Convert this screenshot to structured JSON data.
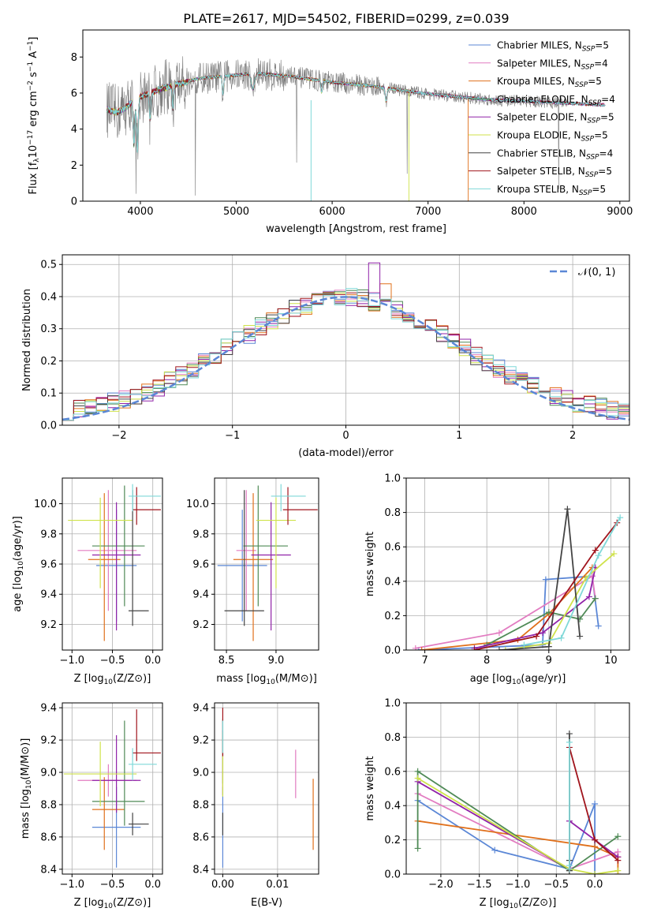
{
  "figure_title": "PLATE=2617, MJD=54502, FIBERID=0299, z=0.039",
  "colors": {
    "Chabrier MILES": "#5b87d6",
    "Salpeter MILES": "#e27cc1",
    "Kroupa MILES": "#e0701b",
    "Chabrier ELODIE": "#4f8a56",
    "Salpeter ELODIE": "#9022a8",
    "Kroupa ELODIE": "#cfe24a",
    "Chabrier STELIB": "#444444",
    "Salpeter STELIB": "#a0141c",
    "Kroupa STELIB": "#7fd8d8",
    "data_gray": "#7a7a7a",
    "normal_curve": "#5b87d6",
    "grid": "#b0b0b0"
  },
  "chart_data": [
    {
      "id": "spectrum",
      "type": "line",
      "xlabel": "wavelength [Angstrom, rest frame]",
      "ylabel": "Flux [f$_\\lambda$10$^{-17}$ erg cm$^{-2}$ s$^{-1}$ A$^{-1}$]",
      "ylabel_parts": [
        "Flux [f",
        "λ",
        "10",
        "−17",
        " erg cm",
        "−2",
        " s",
        "−1",
        " A",
        "−1",
        "]"
      ],
      "xlim": [
        3400,
        9100
      ],
      "ylim": [
        0,
        9.5
      ],
      "xticks": [
        4000,
        5000,
        6000,
        7000,
        8000,
        9000
      ],
      "yticks": [
        0,
        2,
        4,
        6,
        8
      ],
      "grid": false,
      "legend_position": "top-right",
      "legend": [
        {
          "model": "Chabrier MILES",
          "nssp": "5"
        },
        {
          "model": "Salpeter MILES",
          "nssp": "4"
        },
        {
          "model": "Kroupa MILES",
          "nssp": "5"
        },
        {
          "model": "Chabrier ELODIE",
          "nssp": "4"
        },
        {
          "model": "Salpeter ELODIE",
          "nssp": "5"
        },
        {
          "model": "Kroupa ELODIE",
          "nssp": "5"
        },
        {
          "model": "Chabrier STELIB",
          "nssp": "4"
        },
        {
          "model": "Salpeter STELIB",
          "nssp": "5"
        },
        {
          "model": "Kroupa STELIB",
          "nssp": "5"
        }
      ],
      "legend_prefix": "N",
      "legend_sub": "SSP",
      "continuum": [
        [
          3650,
          5.1
        ],
        [
          3750,
          4.9
        ],
        [
          3850,
          5.2
        ],
        [
          3950,
          5.7
        ],
        [
          4050,
          5.9
        ],
        [
          4200,
          6.2
        ],
        [
          4400,
          6.5
        ],
        [
          4600,
          6.8
        ],
        [
          4800,
          6.9
        ],
        [
          5000,
          7.0
        ],
        [
          5200,
          7.1
        ],
        [
          5400,
          7.0
        ],
        [
          5600,
          6.9
        ],
        [
          5800,
          6.75
        ],
        [
          6000,
          6.6
        ],
        [
          6200,
          6.5
        ],
        [
          6400,
          6.4
        ],
        [
          6600,
          6.25
        ],
        [
          6800,
          6.1
        ],
        [
          7000,
          5.95
        ],
        [
          7200,
          5.85
        ],
        [
          7400,
          5.75
        ],
        [
          7600,
          5.65
        ],
        [
          7800,
          5.6
        ],
        [
          8000,
          5.55
        ],
        [
          8200,
          5.5
        ],
        [
          8400,
          5.45
        ],
        [
          8600,
          5.4
        ],
        [
          8800,
          5.35
        ]
      ],
      "model_cutoffs": {
        "Kroupa ELODIE": 6800,
        "Kroupa MILES": 7420
      },
      "data_range": [
        3650,
        8450
      ],
      "model_range": [
        3650,
        8850
      ]
    },
    {
      "id": "residual-histogram",
      "type": "bar",
      "xlabel": "(data-model)/error",
      "ylabel": "Normed distribution",
      "xlim": [
        -2.5,
        2.5
      ],
      "ylim": [
        0,
        0.53
      ],
      "xticks": [
        -2,
        -1,
        0,
        1,
        2
      ],
      "yticks": [
        0.0,
        0.1,
        0.2,
        0.3,
        0.4,
        0.5
      ],
      "grid": true,
      "bin_width": 0.1,
      "bin_range": [
        -2.5,
        2.5
      ],
      "legend_position": "top-right",
      "normal_legend": "𝒩(0, 1)",
      "normal": {
        "mean": 0,
        "sigma": 1
      }
    },
    {
      "id": "age-vs-z",
      "type": "scatter",
      "xlabel": "Z [log10(Z/Z⊙)]",
      "ylabel": "age  [log10(age/yr)]",
      "xlim": [
        -1.12,
        0.12
      ],
      "ylim": [
        9.03,
        10.17
      ],
      "xticks": [
        -1.0,
        -0.5,
        0.0
      ],
      "yticks": [
        9.2,
        9.4,
        9.6,
        9.8,
        10.0
      ],
      "grid": true,
      "points": [
        {
          "model": "Chabrier MILES",
          "x": -0.45,
          "xerr": [
            0.25,
            0.25
          ],
          "y": 9.59,
          "yerr": [
            0.37,
            0.37
          ]
        },
        {
          "model": "Salpeter MILES",
          "x": -0.55,
          "xerr": [
            0.38,
            0.35
          ],
          "y": 9.69,
          "yerr": [
            0.4,
            0.4
          ]
        },
        {
          "model": "Kroupa MILES",
          "x": -0.6,
          "xerr": [
            0.2,
            0.2
          ],
          "y": 9.63,
          "yerr": [
            0.54,
            0.44
          ]
        },
        {
          "model": "Chabrier ELODIE",
          "x": -0.35,
          "xerr": [
            0.4,
            0.25
          ],
          "y": 9.72,
          "yerr": [
            0.4,
            0.4
          ]
        },
        {
          "model": "Salpeter ELODIE",
          "x": -0.45,
          "xerr": [
            0.3,
            0.3
          ],
          "y": 9.66,
          "yerr": [
            0.5,
            0.35
          ]
        },
        {
          "model": "Kroupa ELODIE",
          "x": -0.65,
          "xerr": [
            0.4,
            0.4
          ],
          "y": 9.89,
          "yerr": [
            0.45,
            0.15
          ]
        },
        {
          "model": "Chabrier STELIB",
          "x": -0.25,
          "xerr": [
            0.05,
            0.2
          ],
          "y": 9.29,
          "yerr": [
            0.1,
            0.8
          ]
        },
        {
          "model": "Salpeter STELIB",
          "x": -0.2,
          "xerr": [
            0.05,
            0.3
          ],
          "y": 9.96,
          "yerr": [
            0.1,
            0.15
          ]
        },
        {
          "model": "Kroupa STELIB",
          "x": -0.25,
          "xerr": [
            0.05,
            0.35
          ],
          "y": 10.05,
          "yerr": [
            0.1,
            0.08
          ]
        }
      ]
    },
    {
      "id": "age-vs-mass",
      "type": "scatter",
      "xlabel": "mass [log10(M/M⊙)]",
      "ylabel": "",
      "xlim": [
        8.38,
        9.43
      ],
      "ylim": [
        9.03,
        10.17
      ],
      "xticks": [
        8.5,
        9.0
      ],
      "yticks": [
        9.2,
        9.4,
        9.6,
        9.8,
        10.0
      ],
      "grid": true,
      "points": [
        {
          "model": "Chabrier MILES",
          "x": 8.66,
          "xerr": [
            0.25,
            0.25
          ],
          "y": 9.59,
          "yerr": [
            0.37,
            0.37
          ]
        },
        {
          "model": "Salpeter MILES",
          "x": 8.7,
          "xerr": [
            0.1,
            0.1
          ],
          "y": 9.69,
          "yerr": [
            0.4,
            0.4
          ]
        },
        {
          "model": "Kroupa MILES",
          "x": 8.77,
          "xerr": [
            0.2,
            0.2
          ],
          "y": 9.63,
          "yerr": [
            0.54,
            0.44
          ]
        },
        {
          "model": "Chabrier ELODIE",
          "x": 8.82,
          "xerr": [
            0.15,
            0.3
          ],
          "y": 9.72,
          "yerr": [
            0.4,
            0.4
          ]
        },
        {
          "model": "Salpeter ELODIE",
          "x": 8.95,
          "xerr": [
            0.2,
            0.2
          ],
          "y": 9.66,
          "yerr": [
            0.5,
            0.35
          ]
        },
        {
          "model": "Kroupa ELODIE",
          "x": 9.0,
          "xerr": [
            0.2,
            0.2
          ],
          "y": 9.89,
          "yerr": [
            0.45,
            0.15
          ]
        },
        {
          "model": "Chabrier STELIB",
          "x": 8.68,
          "xerr": [
            0.2,
            0.2
          ],
          "y": 9.29,
          "yerr": [
            0.1,
            0.8
          ]
        },
        {
          "model": "Salpeter STELIB",
          "x": 9.12,
          "xerr": [
            0.05,
            0.3
          ],
          "y": 9.96,
          "yerr": [
            0.1,
            0.15
          ]
        },
        {
          "model": "Kroupa STELIB",
          "x": 9.05,
          "xerr": [
            0.1,
            0.25
          ],
          "y": 10.05,
          "yerr": [
            0.1,
            0.08
          ]
        }
      ]
    },
    {
      "id": "mass-weight-vs-age",
      "type": "line",
      "xlabel": "age  [log10(age/yr)]",
      "ylabel": "mass weight",
      "xlim": [
        6.7,
        10.3
      ],
      "ylim": [
        0,
        1
      ],
      "xticks": [
        7,
        8,
        9,
        10
      ],
      "yticks": [
        0.0,
        0.2,
        0.4,
        0.6,
        0.8,
        1.0
      ],
      "grid": true,
      "series": [
        {
          "model": "Chabrier MILES",
          "x": [
            6.9,
            8.9,
            8.95,
            9.7,
            9.8
          ],
          "y": [
            0.0,
            0.03,
            0.41,
            0.43,
            0.14
          ]
        },
        {
          "model": "Salpeter MILES",
          "x": [
            6.85,
            8.2,
            9.7,
            9.75
          ],
          "y": [
            0.01,
            0.1,
            0.43,
            0.3
          ]
        },
        {
          "model": "Kroupa MILES",
          "x": [
            6.95,
            8.5,
            9.0,
            9.7
          ],
          "y": [
            0.0,
            0.06,
            0.21,
            0.48
          ]
        },
        {
          "model": "Chabrier ELODIE",
          "x": [
            8.0,
            9.0,
            9.5,
            9.75
          ],
          "y": [
            0.03,
            0.22,
            0.18,
            0.3
          ]
        },
        {
          "model": "Salpeter ELODIE",
          "x": [
            7.8,
            8.9,
            9.65,
            9.75
          ],
          "y": [
            0.01,
            0.1,
            0.31,
            0.48
          ]
        },
        {
          "model": "Kroupa ELODIE",
          "x": [
            8.3,
            9.0,
            9.6,
            10.05
          ],
          "y": [
            0.0,
            0.04,
            0.42,
            0.56
          ]
        },
        {
          "model": "Chabrier STELIB",
          "x": [
            8.2,
            9.0,
            9.3,
            9.5
          ],
          "y": [
            0.0,
            0.02,
            0.82,
            0.08
          ]
        },
        {
          "model": "Salpeter STELIB",
          "x": [
            7.8,
            8.8,
            9.75,
            10.1
          ],
          "y": [
            0.0,
            0.08,
            0.58,
            0.74
          ]
        },
        {
          "model": "Kroupa STELIB",
          "x": [
            8.6,
            9.2,
            9.8,
            10.15
          ],
          "y": [
            0.03,
            0.07,
            0.55,
            0.77
          ]
        }
      ]
    },
    {
      "id": "mass-vs-z",
      "type": "scatter",
      "xlabel": "Z [log10(Z/Z⊙)]",
      "ylabel": "mass [log10(M/M⊙)]",
      "xlim": [
        -1.12,
        0.12
      ],
      "ylim": [
        8.37,
        9.43
      ],
      "xticks": [
        -1.0,
        -0.5,
        0.0
      ],
      "yticks": [
        8.4,
        8.6,
        8.8,
        9.0,
        9.2,
        9.4
      ],
      "grid": true,
      "points": [
        {
          "model": "Chabrier MILES",
          "x": -0.45,
          "xerr": [
            0.3,
            0.3
          ],
          "y": 8.66,
          "yerr": [
            0.25,
            0.25
          ]
        },
        {
          "model": "Salpeter MILES",
          "x": -0.55,
          "xerr": [
            0.38,
            0.35
          ],
          "y": 8.95,
          "yerr": [
            0.1,
            0.1
          ]
        },
        {
          "model": "Kroupa MILES",
          "x": -0.6,
          "xerr": [
            0.15,
            0.25
          ],
          "y": 8.77,
          "yerr": [
            0.25,
            0.2
          ]
        },
        {
          "model": "Chabrier ELODIE",
          "x": -0.35,
          "xerr": [
            0.4,
            0.25
          ],
          "y": 8.82,
          "yerr": [
            0.15,
            0.5
          ]
        },
        {
          "model": "Salpeter ELODIE",
          "x": -0.45,
          "xerr": [
            0.3,
            0.3
          ],
          "y": 8.95,
          "yerr": [
            0.2,
            0.28
          ]
        },
        {
          "model": "Kroupa ELODIE",
          "x": -0.65,
          "xerr": [
            0.45,
            0.45
          ],
          "y": 8.99,
          "yerr": [
            0.2,
            0.2
          ]
        },
        {
          "model": "Chabrier STELIB",
          "x": -0.25,
          "xerr": [
            0.05,
            0.2
          ],
          "y": 8.68,
          "yerr": [
            0.07,
            0.07
          ]
        },
        {
          "model": "Salpeter STELIB",
          "x": -0.2,
          "xerr": [
            0.05,
            0.3
          ],
          "y": 9.12,
          "yerr": [
            0.05,
            0.27
          ]
        },
        {
          "model": "Kroupa STELIB",
          "x": -0.25,
          "xerr": [
            0.05,
            0.3
          ],
          "y": 9.05,
          "yerr": [
            0.1,
            0.1
          ]
        }
      ]
    },
    {
      "id": "mass-vs-ebv",
      "type": "scatter",
      "xlabel": "E(B-V)",
      "ylabel": "",
      "xlim": [
        -0.0015,
        0.0175
      ],
      "ylim": [
        8.37,
        9.43
      ],
      "xticks": [
        0.0,
        0.01
      ],
      "xticklabels": [
        "0.00",
        "0.01"
      ],
      "yticks": [
        8.4,
        8.6,
        8.8,
        9.0,
        9.2,
        9.4
      ],
      "grid": true,
      "points": [
        {
          "model": "Chabrier MILES",
          "x": 0.0,
          "y": 8.66,
          "yerr": [
            0.25,
            0.25
          ]
        },
        {
          "model": "Salpeter MILES",
          "x": 0.0133,
          "y": 8.99,
          "yerr": [
            0.15,
            0.15
          ]
        },
        {
          "model": "Kroupa MILES",
          "x": 0.0165,
          "y": 8.74,
          "yerr": [
            0.22,
            0.22
          ]
        },
        {
          "model": "Chabrier ELODIE",
          "x": 0.0,
          "y": 9.13,
          "yerr": [
            0.2,
            0.2
          ]
        },
        {
          "model": "Salpeter ELODIE",
          "x": 0.0,
          "y": 9.06,
          "yerr": [
            0.2,
            0.2
          ]
        },
        {
          "model": "Kroupa ELODIE",
          "x": 0.0,
          "y": 9.05,
          "yerr": [
            0.2,
            0.2
          ]
        },
        {
          "model": "Chabrier STELIB",
          "x": 0.0,
          "y": 8.68,
          "yerr": [
            0.07,
            0.07
          ]
        },
        {
          "model": "Salpeter STELIB",
          "x": 0.0,
          "y": 9.25,
          "yerr": [
            0.15,
            0.15
          ]
        },
        {
          "model": "Kroupa STELIB",
          "x": 0.0,
          "y": 9.22,
          "yerr": [
            0.1,
            0.1
          ]
        }
      ]
    },
    {
      "id": "mass-weight-vs-z",
      "type": "line",
      "xlabel": "Z [log10(Z/Z⊙)]",
      "ylabel": "mass weight",
      "xlim": [
        -2.45,
        0.45
      ],
      "ylim": [
        0,
        1
      ],
      "xticks": [
        -2.0,
        -1.5,
        -1.0,
        -0.5,
        0.0
      ],
      "yticks": [
        0.0,
        0.2,
        0.4,
        0.6,
        0.8,
        1.0
      ],
      "grid": true,
      "series": [
        {
          "model": "Chabrier MILES",
          "x": [
            -2.3,
            -1.3,
            -0.33,
            0.0,
            0.0
          ],
          "y": [
            0.43,
            0.14,
            0.03,
            0.41,
            0.0
          ]
        },
        {
          "model": "Salpeter MILES",
          "x": [
            -2.3,
            -0.33,
            0.3,
            0.3
          ],
          "y": [
            0.47,
            0.03,
            0.13,
            0.1
          ]
        },
        {
          "model": "Kroupa MILES",
          "x": [
            -2.3,
            0.0,
            0.3,
            0.3
          ],
          "y": [
            0.31,
            0.16,
            0.1,
            0.0
          ]
        },
        {
          "model": "Chabrier ELODIE",
          "x": [
            -2.3,
            -2.3,
            -0.33,
            0.3
          ],
          "y": [
            0.15,
            0.6,
            0.02,
            0.22
          ]
        },
        {
          "model": "Salpeter ELODIE",
          "x": [
            -2.3,
            -0.33,
            -0.33,
            0.0,
            0.3
          ],
          "y": [
            0.54,
            0.03,
            0.31,
            0.2,
            0.1
          ]
        },
        {
          "model": "Kroupa ELODIE",
          "x": [
            -2.3,
            -0.33,
            0.0,
            0.3
          ],
          "y": [
            0.56,
            0.03,
            0.0,
            0.02
          ]
        },
        {
          "model": "Chabrier STELIB",
          "x": [
            -0.33,
            -0.33,
            -0.33
          ],
          "y": [
            0.02,
            0.82,
            0.08
          ]
        },
        {
          "model": "Salpeter STELIB",
          "x": [
            -0.33,
            -0.33,
            0.0,
            0.3
          ],
          "y": [
            0.03,
            0.74,
            0.2,
            0.08
          ]
        },
        {
          "model": "Kroupa STELIB",
          "x": [
            -0.33,
            -0.33,
            -0.33
          ],
          "y": [
            0.03,
            0.77,
            0.05
          ]
        }
      ]
    }
  ]
}
